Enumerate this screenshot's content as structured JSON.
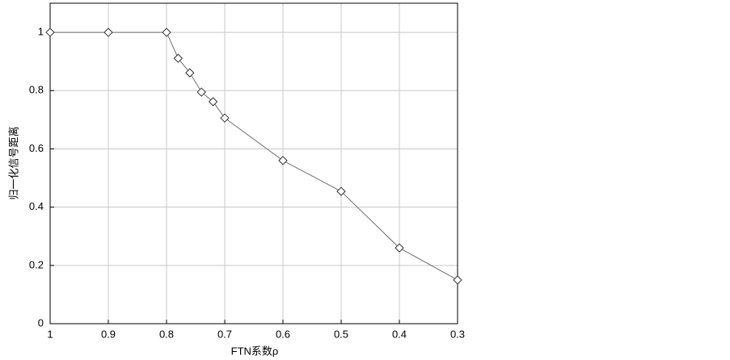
{
  "chart_data": {
    "type": "line",
    "x_label": "FTN系数ρ",
    "y_label": "归一化信号距离",
    "x": [
      1,
      0.9,
      0.8,
      0.78,
      0.76,
      0.74,
      0.72,
      0.7,
      0.6,
      0.5,
      0.4,
      0.3
    ],
    "series": [
      {
        "color": "#707070",
        "values": [
          1,
          1,
          1,
          0.911,
          0.861,
          0.795,
          0.762,
          0.706,
          0.56,
          0.454,
          0.26,
          0.15
        ]
      }
    ],
    "xlim": [
      1,
      0.3
    ],
    "xticks": [
      1,
      0.9,
      0.8,
      0.7,
      0.6,
      0.5,
      0.4,
      0.3
    ],
    "ylim": [
      0,
      1.1
    ],
    "yticks": [
      0,
      0.2,
      0.4,
      0.6,
      0.8,
      1
    ],
    "grid": true,
    "marker": "diamond"
  }
}
